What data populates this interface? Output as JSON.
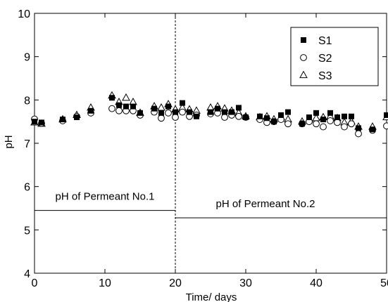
{
  "chart_data": {
    "type": "scatter",
    "title": "",
    "xlabel": "Time/ days",
    "ylabel": "pH",
    "xlim": [
      0,
      50
    ],
    "ylim": [
      4,
      10
    ],
    "xticks": [
      0,
      10,
      20,
      30,
      40,
      50
    ],
    "xtick_labels": [
      "0",
      "10",
      "20",
      "30",
      "40",
      "50"
    ],
    "yticks": [
      4,
      5,
      6,
      7,
      8,
      9,
      10
    ],
    "ytick_labels": [
      "4",
      "5",
      "6",
      "7",
      "8",
      "9",
      "10"
    ],
    "grid": false,
    "legend_position": "top-right",
    "series": [
      {
        "name": "S1",
        "marker": "filled-square",
        "points": [
          [
            0,
            7.5
          ],
          [
            1,
            7.48
          ],
          [
            4,
            7.55
          ],
          [
            6,
            7.6
          ],
          [
            8,
            7.75
          ],
          [
            11,
            8.05
          ],
          [
            12,
            7.88
          ],
          [
            13,
            7.85
          ],
          [
            14,
            7.85
          ],
          [
            15,
            7.7
          ],
          [
            17,
            7.8
          ],
          [
            18,
            7.7
          ],
          [
            19,
            7.85
          ],
          [
            20,
            7.72
          ],
          [
            21,
            7.93
          ],
          [
            22,
            7.72
          ],
          [
            23,
            7.62
          ],
          [
            25,
            7.72
          ],
          [
            26,
            7.8
          ],
          [
            27,
            7.72
          ],
          [
            28,
            7.72
          ],
          [
            29,
            7.82
          ],
          [
            30,
            7.6
          ],
          [
            32,
            7.62
          ],
          [
            33,
            7.58
          ],
          [
            34,
            7.5
          ],
          [
            35,
            7.65
          ],
          [
            36,
            7.72
          ],
          [
            38,
            7.45
          ],
          [
            39,
            7.6
          ],
          [
            40,
            7.7
          ],
          [
            41,
            7.55
          ],
          [
            42,
            7.7
          ],
          [
            43,
            7.6
          ],
          [
            44,
            7.62
          ],
          [
            45,
            7.62
          ],
          [
            46,
            7.35
          ],
          [
            48,
            7.32
          ],
          [
            50,
            7.65
          ]
        ]
      },
      {
        "name": "S2",
        "marker": "open-circle",
        "points": [
          [
            0,
            7.56
          ],
          [
            1,
            7.46
          ],
          [
            4,
            7.52
          ],
          [
            6,
            7.62
          ],
          [
            8,
            7.7
          ],
          [
            11,
            7.8
          ],
          [
            12,
            7.75
          ],
          [
            13,
            7.75
          ],
          [
            14,
            7.75
          ],
          [
            15,
            7.65
          ],
          [
            17,
            7.72
          ],
          [
            18,
            7.58
          ],
          [
            19,
            7.7
          ],
          [
            20,
            7.6
          ],
          [
            21,
            7.72
          ],
          [
            22,
            7.62
          ],
          [
            23,
            7.65
          ],
          [
            25,
            7.68
          ],
          [
            26,
            7.7
          ],
          [
            27,
            7.6
          ],
          [
            28,
            7.65
          ],
          [
            29,
            7.62
          ],
          [
            30,
            7.6
          ],
          [
            32,
            7.55
          ],
          [
            33,
            7.48
          ],
          [
            34,
            7.5
          ],
          [
            35,
            7.55
          ],
          [
            36,
            7.45
          ],
          [
            38,
            7.45
          ],
          [
            39,
            7.5
          ],
          [
            40,
            7.45
          ],
          [
            41,
            7.38
          ],
          [
            42,
            7.52
          ],
          [
            43,
            7.48
          ],
          [
            44,
            7.38
          ],
          [
            45,
            7.45
          ],
          [
            46,
            7.22
          ],
          [
            48,
            7.3
          ],
          [
            50,
            7.4
          ]
        ]
      },
      {
        "name": "S3",
        "marker": "open-triangle",
        "points": [
          [
            0,
            7.48
          ],
          [
            1,
            7.45
          ],
          [
            4,
            7.55
          ],
          [
            6,
            7.65
          ],
          [
            8,
            7.82
          ],
          [
            11,
            8.1
          ],
          [
            12,
            7.95
          ],
          [
            13,
            8.05
          ],
          [
            14,
            7.95
          ],
          [
            15,
            7.7
          ],
          [
            17,
            7.85
          ],
          [
            18,
            7.82
          ],
          [
            19,
            7.9
          ],
          [
            20,
            7.78
          ],
          [
            21,
            7.82
          ],
          [
            22,
            7.78
          ],
          [
            23,
            7.75
          ],
          [
            25,
            7.82
          ],
          [
            26,
            7.85
          ],
          [
            27,
            7.8
          ],
          [
            28,
            7.75
          ],
          [
            29,
            7.7
          ],
          [
            30,
            7.62
          ],
          [
            32,
            7.6
          ],
          [
            33,
            7.62
          ],
          [
            34,
            7.55
          ],
          [
            35,
            7.6
          ],
          [
            36,
            7.55
          ],
          [
            38,
            7.5
          ],
          [
            39,
            7.55
          ],
          [
            40,
            7.58
          ],
          [
            41,
            7.6
          ],
          [
            42,
            7.62
          ],
          [
            43,
            7.58
          ],
          [
            44,
            7.48
          ],
          [
            45,
            7.5
          ],
          [
            46,
            7.38
          ],
          [
            48,
            7.38
          ],
          [
            50,
            7.6
          ]
        ]
      }
    ],
    "vertical_lines": [
      {
        "x": 20,
        "style": "dashed"
      }
    ],
    "reference_segments": [
      {
        "x_start": 0,
        "x_end": 20,
        "y": 5.45,
        "label": "pH of Permeant No.1"
      },
      {
        "x_start": 20,
        "x_end": 50,
        "y": 5.28,
        "label": "pH of Permeant No.2"
      }
    ]
  }
}
